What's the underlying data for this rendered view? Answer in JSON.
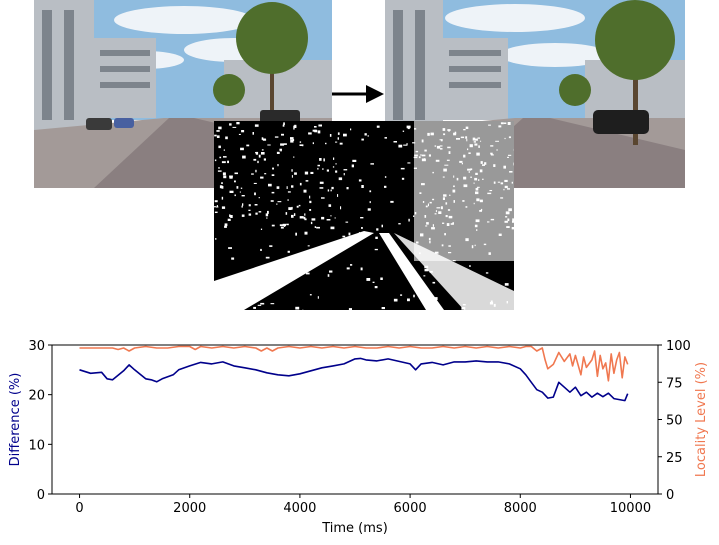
{
  "figure": {
    "panels": [
      {
        "name": "frame-left",
        "description": "street scene, earlier video frame"
      },
      {
        "name": "frame-right",
        "description": "street scene, later video frame"
      },
      {
        "name": "diff-map",
        "description": "binary frame-difference map (white = changed)"
      }
    ]
  },
  "colors": {
    "left_axis": "#00008b",
    "right_axis": "#f07850",
    "sky": "#8fbcdf",
    "cloud": "#eef3f8",
    "building": "#b9bec4",
    "building_dark": "#7d848c",
    "road": "#8a7f80",
    "sidewalk": "#a39a98",
    "tree": "#4f6e2c",
    "trunk": "#5a4630"
  },
  "chart_data": {
    "type": "line",
    "xlabel": "Time (ms)",
    "ylabel_left": "Difference (%)",
    "ylabel_right": "Locality Level (%)",
    "xlim": [
      -500,
      10500
    ],
    "ylim_left": [
      0,
      30
    ],
    "ylim_right": [
      0,
      100
    ],
    "xticks": [
      "0",
      "2000",
      "4000",
      "6000",
      "8000",
      "10000"
    ],
    "yticks_left": [
      "0",
      "10",
      "20",
      "30"
    ],
    "yticks_right": [
      "0",
      "25",
      "50",
      "75",
      "100"
    ],
    "grid": false,
    "series": [
      {
        "axis": "left",
        "color": "#00008b",
        "x": [
          0,
          200,
          400,
          500,
          600,
          800,
          900,
          1000,
          1200,
          1300,
          1400,
          1500,
          1700,
          1800,
          2000,
          2200,
          2400,
          2600,
          2800,
          3000,
          3200,
          3400,
          3600,
          3800,
          4000,
          4200,
          4400,
          4600,
          4800,
          5000,
          5100,
          5200,
          5400,
          5600,
          5800,
          6000,
          6100,
          6200,
          6400,
          6600,
          6800,
          7000,
          7200,
          7400,
          7600,
          7800,
          8000,
          8100,
          8200,
          8300,
          8400,
          8500,
          8600,
          8700,
          8800,
          8900,
          9000,
          9100,
          9200,
          9300,
          9400,
          9500,
          9600,
          9700,
          9800,
          9900,
          9950
        ],
        "y": [
          25,
          24.3,
          24.5,
          23.2,
          23,
          24.8,
          26,
          25,
          23.2,
          23,
          22.6,
          23.2,
          24,
          25,
          25.8,
          26.5,
          26.2,
          26.6,
          25.8,
          25.4,
          25,
          24.4,
          24,
          23.8,
          24.2,
          24.8,
          25.4,
          25.8,
          26.2,
          27.2,
          27.3,
          27,
          26.8,
          27.2,
          26.7,
          26.2,
          25,
          26.2,
          26.5,
          26,
          26.6,
          26.6,
          26.8,
          26.6,
          26.6,
          26.2,
          25.2,
          24,
          22.5,
          21,
          20.5,
          19.3,
          19.5,
          22.5,
          21.5,
          20.5,
          21.5,
          19.8,
          20.5,
          19.5,
          20.3,
          19.6,
          20.3,
          19.2,
          19,
          18.8,
          20.2
        ]
      },
      {
        "axis": "right",
        "color": "#f07850",
        "x": [
          0,
          200,
          400,
          600,
          700,
          800,
          900,
          1000,
          1200,
          1400,
          1600,
          1800,
          2000,
          2100,
          2200,
          2400,
          2600,
          2800,
          3000,
          3200,
          3300,
          3400,
          3500,
          3600,
          3800,
          4000,
          4200,
          4400,
          4600,
          4800,
          5000,
          5200,
          5400,
          5600,
          5800,
          6000,
          6200,
          6400,
          6600,
          6800,
          7000,
          7200,
          7400,
          7600,
          7800,
          8000,
          8100,
          8200,
          8300,
          8400,
          8450,
          8500,
          8600,
          8700,
          8800,
          8900,
          8950,
          9000,
          9100,
          9150,
          9200,
          9300,
          9350,
          9400,
          9450,
          9500,
          9550,
          9600,
          9650,
          9700,
          9750,
          9800,
          9850,
          9900,
          9950
        ],
        "y": [
          98,
          98,
          98,
          98,
          97,
          98,
          96,
          98,
          99,
          98,
          98,
          99,
          99,
          97,
          99,
          98,
          99,
          98,
          99,
          98,
          96,
          98,
          96,
          98,
          99,
          98,
          99,
          98,
          99,
          98,
          99,
          98,
          98,
          99,
          98,
          99,
          98,
          98,
          99,
          98,
          99,
          98,
          99,
          98,
          99,
          98,
          99,
          99,
          96,
          98,
          90,
          84,
          87,
          95,
          89,
          94,
          86,
          93,
          80,
          92,
          85,
          90,
          96,
          79,
          93,
          84,
          88,
          76,
          94,
          81,
          90,
          95,
          78,
          92,
          87
        ]
      }
    ]
  }
}
